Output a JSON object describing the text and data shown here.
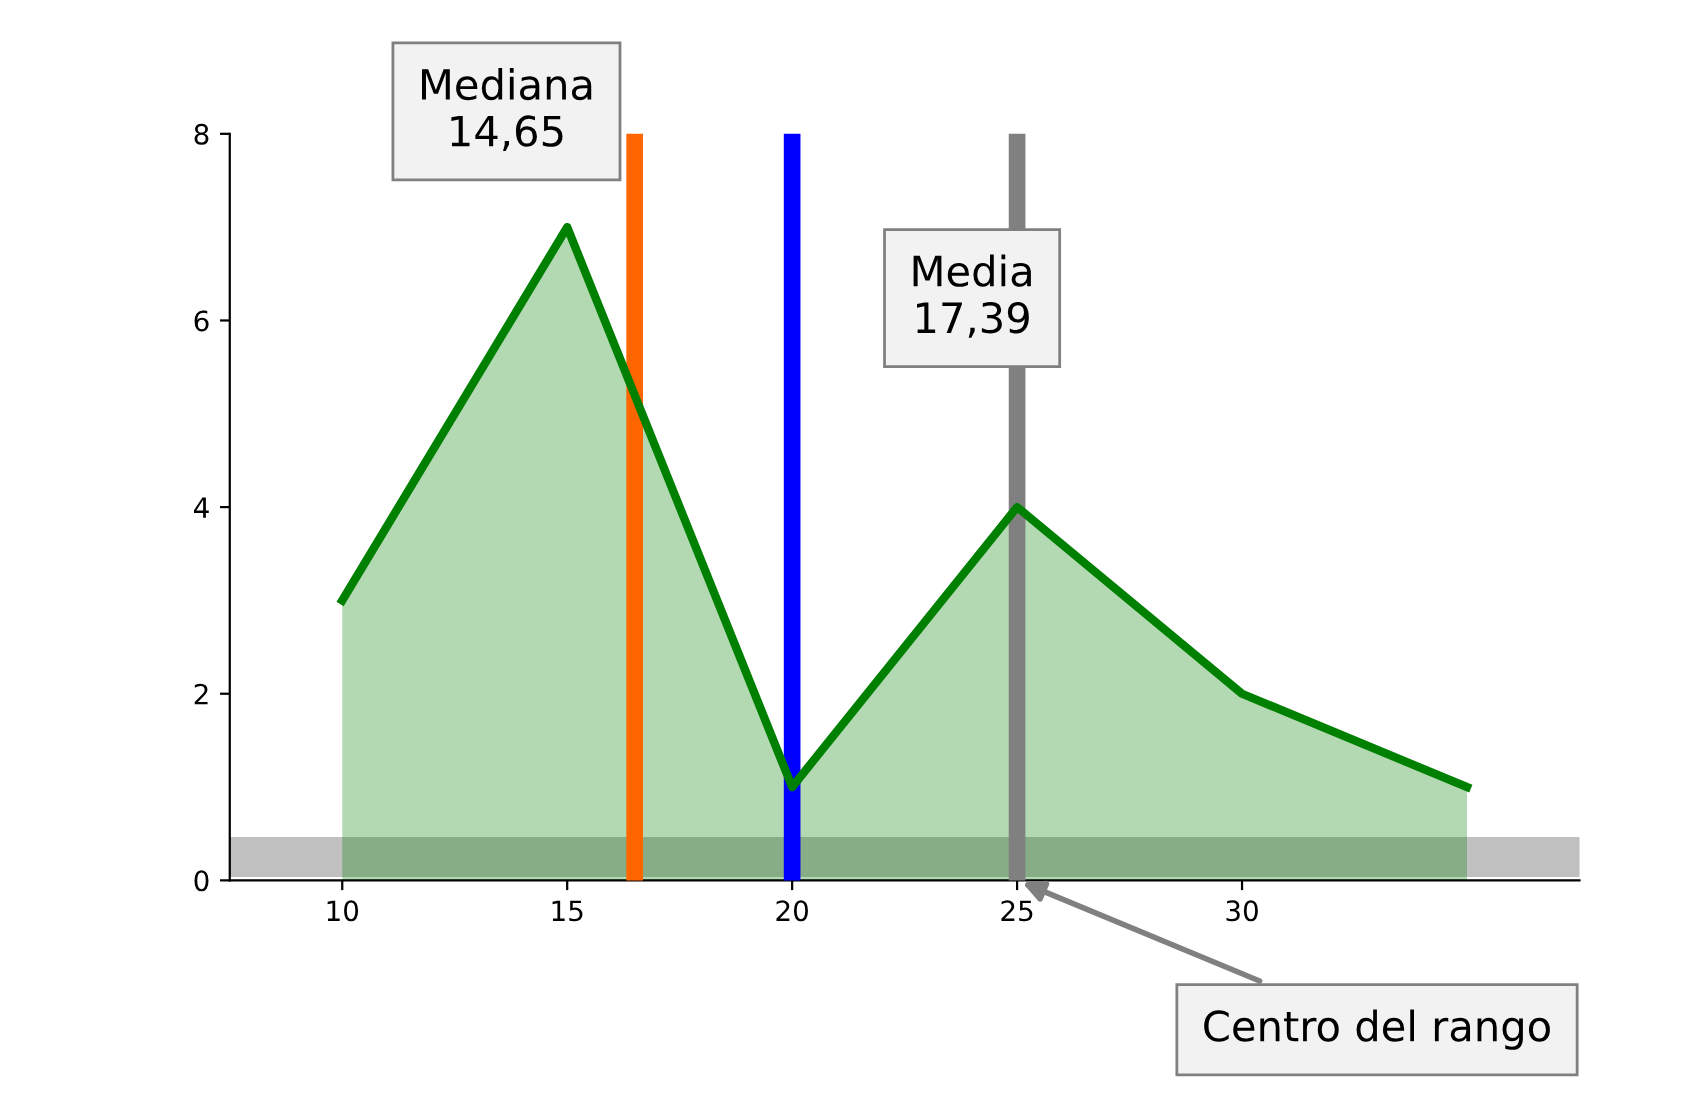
{
  "chart_data": {
    "type": "area",
    "x": [
      10,
      15,
      20,
      25,
      30,
      35
    ],
    "series": [
      {
        "color": "#008000",
        "values": [
          3,
          7,
          1,
          4,
          2,
          1
        ]
      }
    ],
    "xlim": [
      7.5,
      37.5
    ],
    "xticks": [
      10,
      15,
      20,
      25,
      30
    ],
    "ylim": [
      0,
      8
    ],
    "yticks": [
      0,
      2,
      4,
      6,
      8
    ],
    "grid": false,
    "ref_lines": [
      {
        "axis": "x",
        "value": 16.5,
        "label": "Mediana\n14,65",
        "color": "#ff6600"
      },
      {
        "axis": "x",
        "value": 20,
        "label": "Media\n17,39",
        "color": "#0000ff"
      },
      {
        "axis": "x",
        "value": 25,
        "label": "Centro del rango",
        "color": "#808080"
      }
    ],
    "bands": [
      {
        "axis": "y",
        "from": 0.05,
        "to": 0.45,
        "color": "#c0c0c0"
      }
    ]
  }
}
